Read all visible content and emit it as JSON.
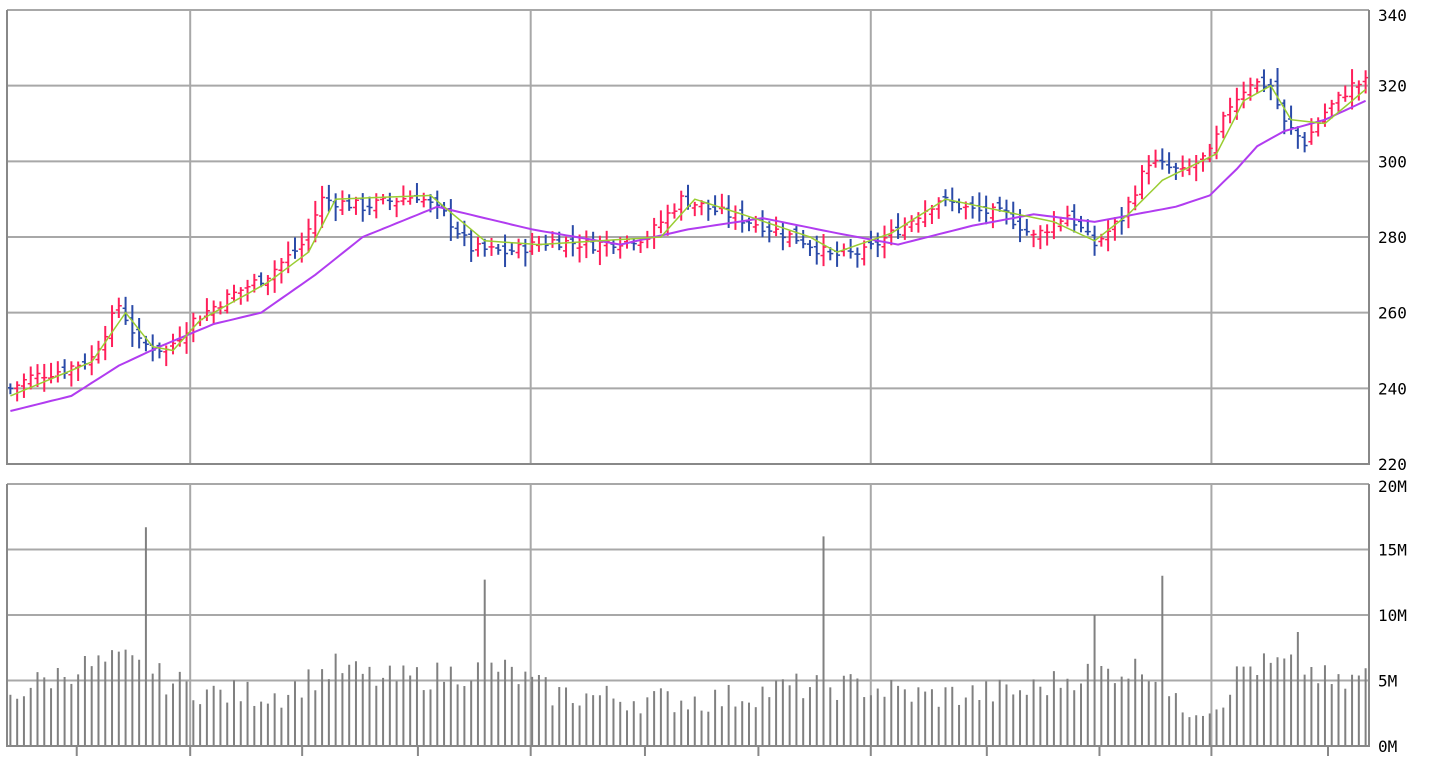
{
  "colors": {
    "background": "#ffffff",
    "grid": "#a8a8a8",
    "frame": "#888888",
    "up_bar": "#ff1f5a",
    "down_bar": "#2a4aa8",
    "short_ma": "#9acd32",
    "long_ma": "#b13cf0",
    "volume_bar": "#808080",
    "text": "#000000"
  },
  "chart_data": [
    {
      "type": "ohlc",
      "title": "",
      "xlabel": "",
      "ylabel": "",
      "ylim": [
        220,
        340
      ],
      "y_ticks": [
        "340",
        "320",
        "300",
        "280",
        "260",
        "240",
        "220"
      ],
      "grid": true,
      "axis_side": "right",
      "x_gridline_fractions": [
        0.1345,
        0.3845,
        0.6342,
        0.8843
      ],
      "series": [
        {
          "name": "",
          "kind": "ohlc",
          "up_color": "#ff1f5a",
          "down_color": "#2a4aa8"
        },
        {
          "name": "",
          "kind": "line",
          "color": "#9acd32"
        },
        {
          "name": "",
          "kind": "line",
          "color": "#b13cf0"
        }
      ],
      "close_keypoints": [
        [
          0,
          240
        ],
        [
          3,
          243
        ],
        [
          8,
          245
        ],
        [
          12,
          248
        ],
        [
          16,
          262
        ],
        [
          19,
          252
        ],
        [
          23,
          250
        ],
        [
          27,
          258
        ],
        [
          32,
          264
        ],
        [
          38,
          270
        ],
        [
          43,
          278
        ],
        [
          46,
          290
        ],
        [
          52,
          288
        ],
        [
          60,
          291
        ],
        [
          64,
          286
        ],
        [
          68,
          277
        ],
        [
          73,
          276
        ],
        [
          80,
          279
        ],
        [
          86,
          278
        ],
        [
          94,
          280
        ],
        [
          99,
          290
        ],
        [
          104,
          287
        ],
        [
          111,
          283
        ],
        [
          117,
          279
        ],
        [
          121,
          275
        ],
        [
          126,
          276
        ],
        [
          131,
          282
        ],
        [
          137,
          290
        ],
        [
          142,
          287
        ],
        [
          147,
          286
        ],
        [
          151,
          280
        ],
        [
          156,
          286
        ],
        [
          160,
          278
        ],
        [
          164,
          285
        ],
        [
          168,
          300
        ],
        [
          173,
          297
        ],
        [
          177,
          302
        ],
        [
          180,
          315
        ],
        [
          183,
          321
        ],
        [
          186,
          320
        ],
        [
          188,
          310
        ],
        [
          191,
          305
        ],
        [
          194,
          313
        ],
        [
          198,
          320
        ],
        [
          200,
          321
        ]
      ],
      "long_ma_keypoints": [
        [
          0,
          234
        ],
        [
          9,
          238
        ],
        [
          16,
          246
        ],
        [
          22,
          251
        ],
        [
          30,
          257
        ],
        [
          37,
          260
        ],
        [
          45,
          270
        ],
        [
          52,
          280
        ],
        [
          63,
          288
        ],
        [
          77,
          282
        ],
        [
          90,
          278
        ],
        [
          100,
          282
        ],
        [
          111,
          285
        ],
        [
          122,
          281
        ],
        [
          131,
          278
        ],
        [
          142,
          283
        ],
        [
          151,
          286
        ],
        [
          160,
          284
        ],
        [
          172,
          288
        ],
        [
          177,
          291
        ],
        [
          181,
          298
        ],
        [
          184,
          304
        ],
        [
          188,
          308
        ],
        [
          194,
          311
        ],
        [
          200,
          316
        ]
      ],
      "short_ma_keypoints": [
        [
          0,
          238
        ],
        [
          12,
          247
        ],
        [
          17,
          260
        ],
        [
          21,
          251
        ],
        [
          24,
          250
        ],
        [
          28,
          258
        ],
        [
          38,
          268
        ],
        [
          44,
          276
        ],
        [
          48,
          290
        ],
        [
          62,
          291
        ],
        [
          70,
          279
        ],
        [
          78,
          278
        ],
        [
          96,
          280
        ],
        [
          101,
          290
        ],
        [
          108,
          286
        ],
        [
          118,
          280
        ],
        [
          122,
          276
        ],
        [
          130,
          281
        ],
        [
          138,
          290
        ],
        [
          146,
          287
        ],
        [
          154,
          284
        ],
        [
          160,
          279
        ],
        [
          165,
          286
        ],
        [
          170,
          295
        ],
        [
          178,
          302
        ],
        [
          182,
          316
        ],
        [
          186,
          320
        ],
        [
          189,
          311
        ],
        [
          194,
          310
        ],
        [
          200,
          319
        ]
      ]
    },
    {
      "type": "bar",
      "title": "",
      "xlabel": "",
      "ylabel": "",
      "ylim": [
        0,
        20000000
      ],
      "y_ticks": [
        "20M",
        "15M",
        "10M",
        "5M",
        "0M"
      ],
      "grid": true,
      "axis_side": "right",
      "x_gridline_fractions": [
        0.1345,
        0.3845,
        0.6342,
        0.8843
      ],
      "x_tick_fractions": [
        0.0512,
        0.1345,
        0.2167,
        0.3017,
        0.3845,
        0.4684,
        0.5517,
        0.6342,
        0.7194,
        0.8021,
        0.8843,
        0.9699
      ],
      "bar_color": "#808080",
      "volume_spikes_millions": [
        [
          20,
          16.7
        ],
        [
          70,
          12.7
        ],
        [
          120,
          16.0
        ],
        [
          160,
          10.0
        ],
        [
          170,
          13.0
        ],
        [
          190,
          8.7
        ]
      ],
      "volume_base_millions": [
        [
          0,
          4.0
        ],
        [
          10,
          6.0
        ],
        [
          17,
          6.5
        ],
        [
          23,
          5.0
        ],
        [
          30,
          4.0
        ],
        [
          40,
          4.0
        ],
        [
          48,
          6.0
        ],
        [
          55,
          5.0
        ],
        [
          65,
          5.5
        ],
        [
          72,
          6.0
        ],
        [
          80,
          4.0
        ],
        [
          95,
          3.5
        ],
        [
          105,
          3.6
        ],
        [
          115,
          4.5
        ],
        [
          125,
          4.6
        ],
        [
          135,
          3.8
        ],
        [
          150,
          4.2
        ],
        [
          158,
          5.5
        ],
        [
          168,
          6.0
        ],
        [
          172,
          3.0
        ],
        [
          178,
          3.2
        ],
        [
          182,
          6.0
        ],
        [
          190,
          6.3
        ],
        [
          196,
          4.5
        ],
        [
          200,
          5.5
        ]
      ]
    }
  ]
}
